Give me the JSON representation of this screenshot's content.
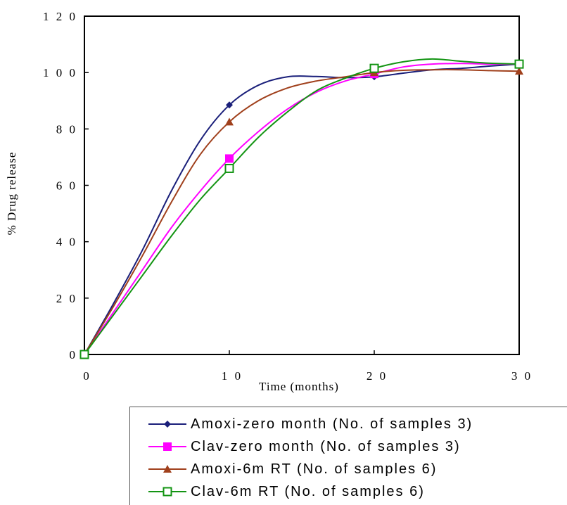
{
  "chart_data": {
    "type": "line",
    "title": "",
    "xlabel": "Time (months)",
    "ylabel": "% Drug release",
    "xlim": [
      0,
      30
    ],
    "ylim": [
      0,
      120
    ],
    "xticks": [
      0,
      10,
      20,
      30
    ],
    "yticks": [
      0,
      20,
      40,
      60,
      80,
      100,
      120
    ],
    "grid": false,
    "legend_position": "bottom",
    "series": [
      {
        "name": "Amoxi-zero month (No. of samples 3)",
        "color": "#1a1f7a",
        "marker": "diamond",
        "points": [
          [
            0,
            0
          ],
          [
            10,
            88.5
          ],
          [
            20,
            98.5
          ],
          [
            30,
            103
          ]
        ],
        "curve": [
          [
            0,
            0
          ],
          [
            2,
            18
          ],
          [
            4,
            37
          ],
          [
            6,
            58
          ],
          [
            8,
            76
          ],
          [
            10,
            88.5
          ],
          [
            12,
            95.5
          ],
          [
            14,
            98.5
          ],
          [
            16,
            98.6
          ],
          [
            18,
            98.2
          ],
          [
            20,
            98.5
          ],
          [
            22,
            99.8
          ],
          [
            24,
            101
          ],
          [
            26,
            101.5
          ],
          [
            28,
            102.3
          ],
          [
            30,
            103
          ]
        ]
      },
      {
        "name": "Clav-zero month (No. of samples 3)",
        "color": "#ff00ff",
        "marker": "square",
        "points": [
          [
            0,
            0
          ],
          [
            10,
            69.5
          ],
          [
            20,
            99.5
          ],
          [
            30,
            103
          ]
        ],
        "curve": [
          [
            0,
            0
          ],
          [
            2,
            15
          ],
          [
            4,
            30
          ],
          [
            6,
            45
          ],
          [
            8,
            58
          ],
          [
            10,
            69.5
          ],
          [
            12,
            79
          ],
          [
            14,
            87
          ],
          [
            16,
            93
          ],
          [
            18,
            97
          ],
          [
            20,
            99.5
          ],
          [
            22,
            102
          ],
          [
            24,
            103
          ],
          [
            26,
            103.2
          ],
          [
            28,
            103
          ],
          [
            30,
            103
          ]
        ]
      },
      {
        "name": "Amoxi-6m RT (No. of samples 6)",
        "color": "#a0401c",
        "marker": "triangle",
        "points": [
          [
            0,
            0
          ],
          [
            10,
            82.5
          ],
          [
            20,
            100
          ],
          [
            30,
            100.5
          ]
        ],
        "curve": [
          [
            0,
            0
          ],
          [
            2,
            17
          ],
          [
            4,
            35
          ],
          [
            6,
            54
          ],
          [
            8,
            71
          ],
          [
            10,
            82.5
          ],
          [
            12,
            90
          ],
          [
            14,
            94.5
          ],
          [
            16,
            97
          ],
          [
            18,
            98.5
          ],
          [
            20,
            100
          ],
          [
            22,
            100.8
          ],
          [
            24,
            101
          ],
          [
            26,
            101
          ],
          [
            28,
            100.7
          ],
          [
            30,
            100.5
          ]
        ]
      },
      {
        "name": "Clav-6m RT (No. of samples 6)",
        "color": "#139413",
        "marker": "square-open",
        "points": [
          [
            0,
            0
          ],
          [
            10,
            66
          ],
          [
            20,
            101.5
          ],
          [
            30,
            103
          ]
        ],
        "curve": [
          [
            0,
            0
          ],
          [
            2,
            14
          ],
          [
            4,
            28
          ],
          [
            6,
            42
          ],
          [
            8,
            55
          ],
          [
            10,
            66
          ],
          [
            12,
            77
          ],
          [
            14,
            86
          ],
          [
            16,
            93.5
          ],
          [
            18,
            98
          ],
          [
            20,
            101.5
          ],
          [
            22,
            103.8
          ],
          [
            24,
            104.8
          ],
          [
            26,
            104
          ],
          [
            28,
            103.3
          ],
          [
            30,
            103
          ]
        ]
      }
    ]
  }
}
